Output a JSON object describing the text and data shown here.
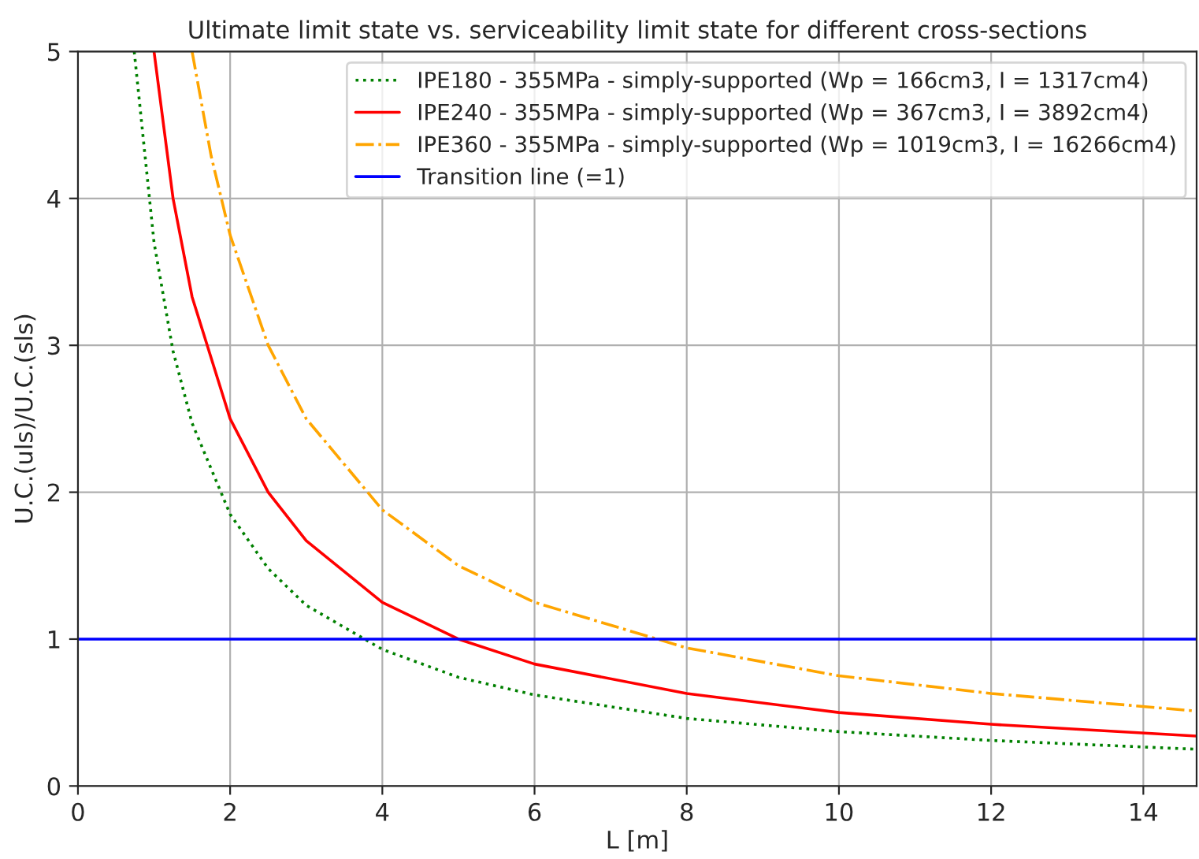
{
  "chart_data": {
    "type": "line",
    "title": "Ultimate limit state vs. serviceability limit state for different cross-sections",
    "xlabel": "L [m]",
    "ylabel": "U.C.(uls)/U.C.(sls)",
    "series": [
      {
        "name": "IPE180 - 355MPa - simply-supported (Wp = 166cm3, I = 1317cm4)",
        "color": "#008000",
        "line_style": "dotted",
        "x": [
          0.74,
          1,
          1.25,
          1.5,
          2,
          2.5,
          3,
          4,
          5,
          6,
          8,
          10,
          12,
          14.7
        ],
        "values": [
          5,
          3.7,
          2.96,
          2.47,
          1.85,
          1.48,
          1.23,
          0.93,
          0.74,
          0.62,
          0.46,
          0.37,
          0.31,
          0.25
        ]
      },
      {
        "name": "IPE240 - 355MPa - simply-supported (Wp = 367cm3, I = 3892cm4)",
        "color": "#ff0000",
        "line_style": "solid",
        "x": [
          1,
          1.25,
          1.5,
          2,
          2.5,
          3,
          4,
          5,
          6,
          8,
          10,
          12,
          14.7
        ],
        "values": [
          5,
          4,
          3.33,
          2.5,
          2,
          1.67,
          1.25,
          1,
          0.83,
          0.63,
          0.5,
          0.42,
          0.34
        ]
      },
      {
        "name": "IPE360 - 355MPa - simply-supported (Wp = 1019cm3, I = 16266cm4)",
        "color": "#ffa500",
        "line_style": "dashdot",
        "x": [
          1.5,
          1.75,
          2,
          2.5,
          3,
          4,
          5,
          6,
          8,
          10,
          12,
          14.7
        ],
        "values": [
          5,
          4.29,
          3.75,
          3,
          2.5,
          1.88,
          1.5,
          1.25,
          0.94,
          0.75,
          0.63,
          0.51
        ]
      },
      {
        "name": "Transition line (=1)",
        "color": "#0000ff",
        "line_style": "solid",
        "x": [
          0,
          14.7
        ],
        "values": [
          1,
          1
        ]
      }
    ],
    "xlim": [
      0,
      14.7
    ],
    "xticks": [
      0,
      2,
      4,
      6,
      8,
      10,
      12,
      14
    ],
    "ylim": [
      0,
      5
    ],
    "yticks": [
      0,
      1,
      2,
      3,
      4,
      5
    ],
    "grid": true,
    "legend": "top right"
  }
}
